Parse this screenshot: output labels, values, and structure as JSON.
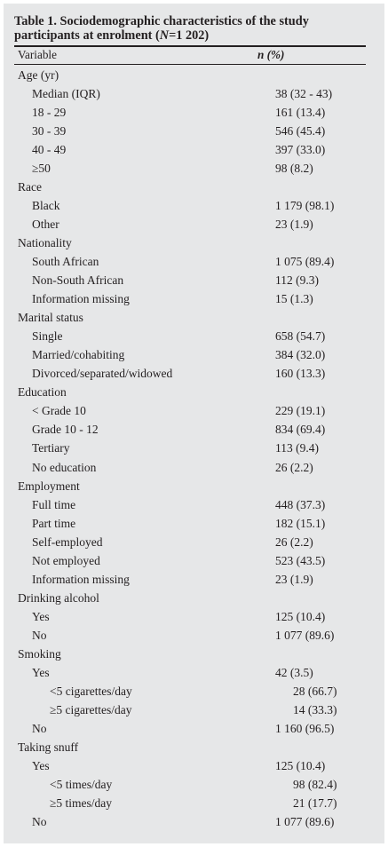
{
  "table": {
    "title": "Table 1. Sociodemographic characteristics of the study participants at enrolment (",
    "title_n_italic": "N",
    "title_n_value": "=1 202)",
    "col_variable": "Variable",
    "col_n": "n (%)",
    "rows": [
      {
        "label": "Age (yr)",
        "value": "",
        "level": 0
      },
      {
        "label": "Median (IQR)",
        "value": "38 (32 - 43)",
        "level": 1
      },
      {
        "label": "18 - 29",
        "value": "161 (13.4)",
        "level": 1
      },
      {
        "label": "30 - 39",
        "value": "546 (45.4)",
        "level": 1
      },
      {
        "label": "40 - 49",
        "value": "397 (33.0)",
        "level": 1
      },
      {
        "label": "≥50",
        "value": "98 (8.2)",
        "level": 1
      },
      {
        "label": "Race",
        "value": "",
        "level": 0
      },
      {
        "label": "Black",
        "value": "1 179 (98.1)",
        "level": 1
      },
      {
        "label": "Other",
        "value": "23 (1.9)",
        "level": 1
      },
      {
        "label": "Nationality",
        "value": "",
        "level": 0
      },
      {
        "label": "South African",
        "value": "1 075 (89.4)",
        "level": 1
      },
      {
        "label": "Non-South African",
        "value": "112 (9.3)",
        "level": 1
      },
      {
        "label": "Information missing",
        "value": "15 (1.3)",
        "level": 1
      },
      {
        "label": "Marital status",
        "value": "",
        "level": 0
      },
      {
        "label": "Single",
        "value": "658 (54.7)",
        "level": 1
      },
      {
        "label": "Married/cohabiting",
        "value": "384 (32.0)",
        "level": 1
      },
      {
        "label": "Divorced/separated/widowed",
        "value": "160 (13.3)",
        "level": 1
      },
      {
        "label": "Education",
        "value": "",
        "level": 0
      },
      {
        "label": "< Grade 10",
        "value": "229 (19.1)",
        "level": 1
      },
      {
        "label": "Grade 10 - 12",
        "value": "834 (69.4)",
        "level": 1
      },
      {
        "label": "Tertiary",
        "value": "113 (9.4)",
        "level": 1
      },
      {
        "label": "No education",
        "value": "26 (2.2)",
        "level": 1
      },
      {
        "label": "Employment",
        "value": "",
        "level": 0
      },
      {
        "label": "Full time",
        "value": "448 (37.3)",
        "level": 1
      },
      {
        "label": "Part time",
        "value": "182 (15.1)",
        "level": 1
      },
      {
        "label": "Self-employed",
        "value": "26 (2.2)",
        "level": 1
      },
      {
        "label": "Not employed",
        "value": "523 (43.5)",
        "level": 1
      },
      {
        "label": "Information missing",
        "value": "23 (1.9)",
        "level": 1
      },
      {
        "label": "Drinking alcohol",
        "value": "",
        "level": 0
      },
      {
        "label": "Yes",
        "value": "125 (10.4)",
        "level": 1
      },
      {
        "label": "No",
        "value": "1 077 (89.6)",
        "level": 1
      },
      {
        "label": "Smoking",
        "value": "",
        "level": 0
      },
      {
        "label": "Yes",
        "value": "42 (3.5)",
        "level": 1
      },
      {
        "label": "<5 cigarettes/day",
        "value": "28 (66.7)",
        "level": 2
      },
      {
        "label": "≥5 cigarettes/day",
        "value": "14 (33.3)",
        "level": 2
      },
      {
        "label": "No",
        "value": "1 160 (96.5)",
        "level": 1
      },
      {
        "label": "Taking snuff",
        "value": "",
        "level": 0
      },
      {
        "label": "Yes",
        "value": "125 (10.4)",
        "level": 1
      },
      {
        "label": "<5 times/day",
        "value": "98 (82.4)",
        "level": 2
      },
      {
        "label": "≥5 times/day",
        "value": "21 (17.7)",
        "level": 2
      },
      {
        "label": "No",
        "value": "1 077 (89.6)",
        "level": 1
      }
    ]
  }
}
